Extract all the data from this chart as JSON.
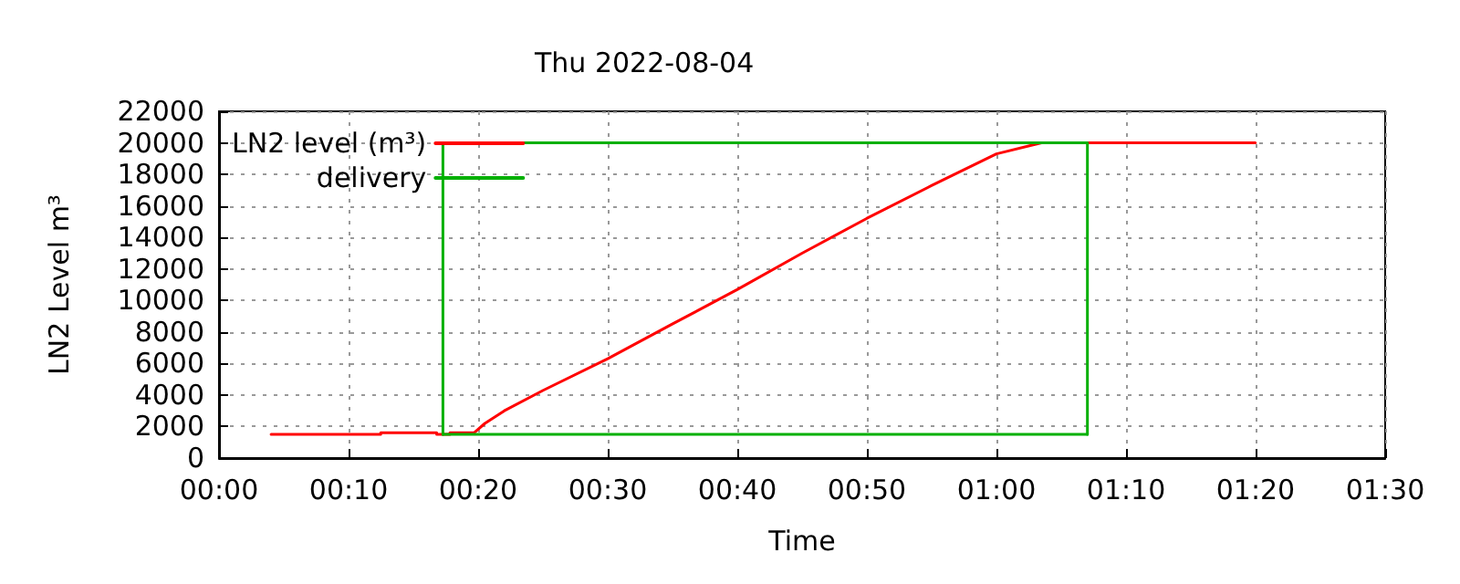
{
  "chart_data": {
    "type": "line",
    "title": "Thu 2022-08-04",
    "xlabel": "Time",
    "ylabel": "LN2 Level m³",
    "xlim": [
      0,
      1.5
    ],
    "xticks": [
      {
        "value": 0,
        "label": "00:00"
      },
      {
        "value": 0.1667,
        "label": "00:10"
      },
      {
        "value": 0.3333,
        "label": "00:20"
      },
      {
        "value": 0.5,
        "label": "00:30"
      },
      {
        "value": 0.6667,
        "label": "00:40"
      },
      {
        "value": 0.8333,
        "label": "00:50"
      },
      {
        "value": 1,
        "label": "01:00"
      },
      {
        "value": 1.1667,
        "label": "01:10"
      },
      {
        "value": 1.3333,
        "label": "01:20"
      },
      {
        "value": 1.5,
        "label": "01:30"
      }
    ],
    "ylim": [
      0,
      22000
    ],
    "yticks": [
      0,
      2000,
      4000,
      6000,
      8000,
      10000,
      12000,
      14000,
      16000,
      18000,
      20000,
      22000
    ],
    "grid": true,
    "legend": "top left",
    "marker": "none",
    "line_style": "solid",
    "series": [
      {
        "name": "LN2 level (m³)",
        "color": "#ff0000",
        "x": [
          0.067,
          0.208,
          0.208,
          0.28,
          0.28,
          0.297,
          0.297,
          0.328,
          0.342,
          0.367,
          0.417,
          0.5,
          0.583,
          0.667,
          0.75,
          0.833,
          0.917,
          1.0,
          1.058,
          1.333
        ],
        "values": [
          1500,
          1500,
          1600,
          1600,
          1500,
          1500,
          1600,
          1600,
          2200,
          3000,
          4300,
          6300,
          8500,
          10700,
          13000,
          15200,
          17300,
          19300,
          20000,
          20000
        ]
      },
      {
        "name": "delivery",
        "color": "#00b000",
        "x": [
          0.288,
          0.288,
          1.117,
          1.117
        ],
        "values": [
          1500,
          20000,
          20000,
          1500
        ]
      },
      {
        "color": "#00b000",
        "x": [
          0.288,
          1.117
        ],
        "values": [
          1500,
          1500
        ]
      }
    ]
  }
}
